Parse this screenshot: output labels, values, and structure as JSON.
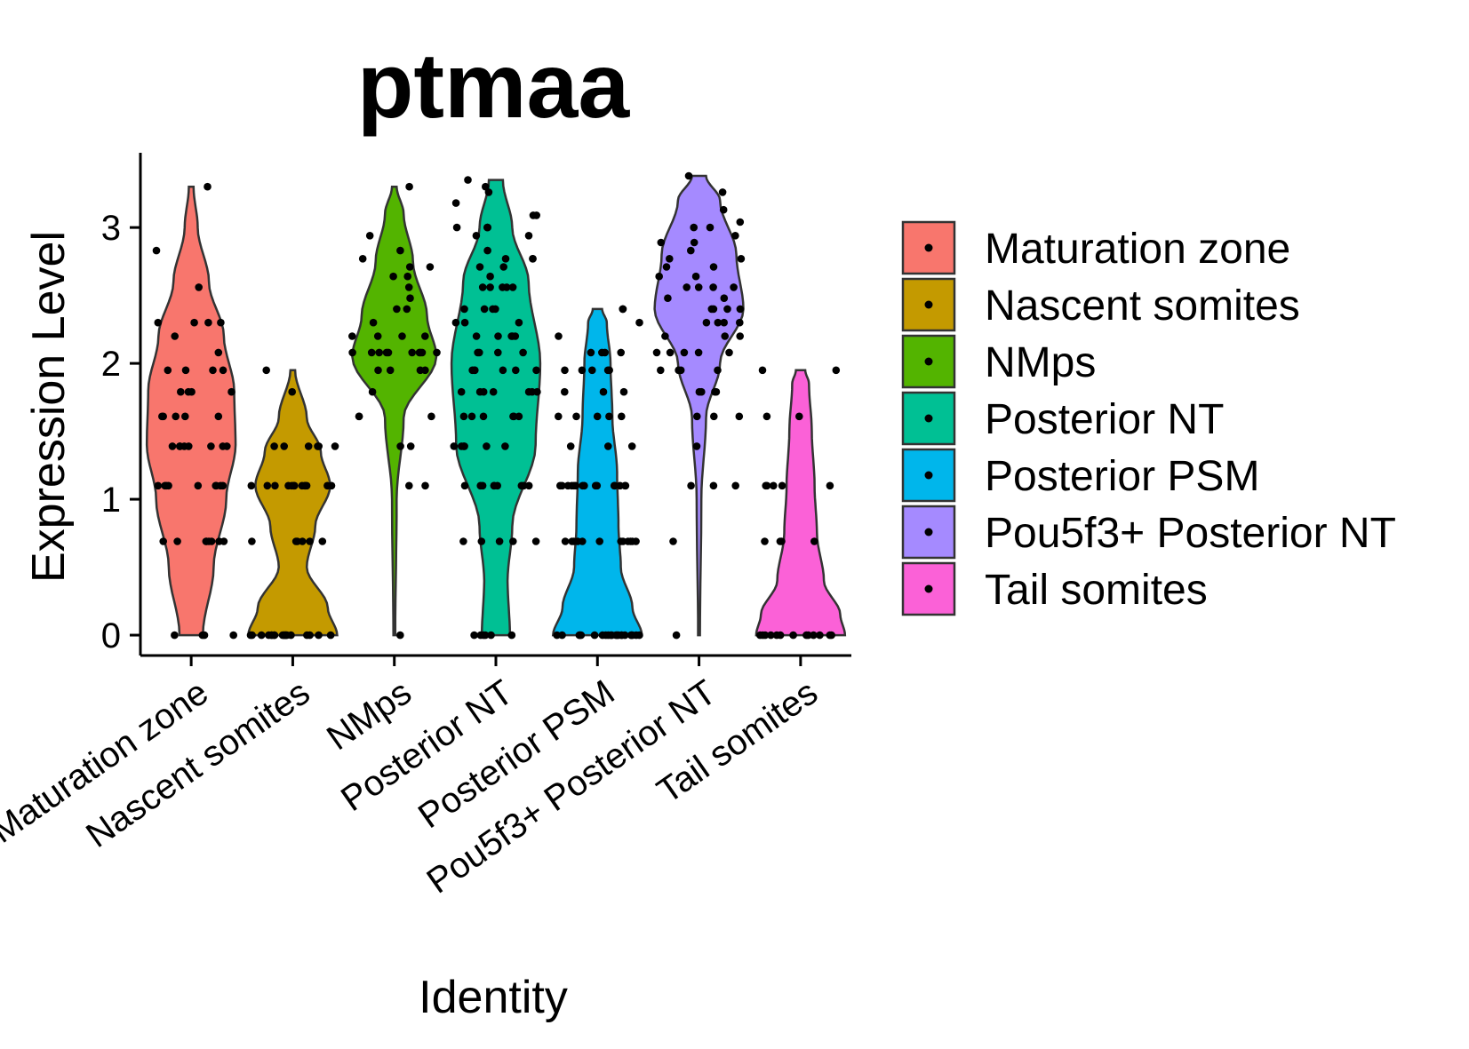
{
  "chart_data": {
    "type": "violin",
    "title": "ptmaa",
    "xlabel": "Identity",
    "ylabel": "Expression Level",
    "ylim": [
      -0.15,
      3.55
    ],
    "yticks": [
      0,
      1,
      2,
      3
    ],
    "legend_position": "right",
    "grid": false,
    "categories": [
      "Maturation zone",
      "Nascent somites",
      "NMps",
      "Posterior NT",
      "Posterior PSM",
      "Pou5f3+ Posterior NT",
      "Tail somites"
    ],
    "colors": [
      "#F8766D",
      "#C49A00",
      "#53B400",
      "#00C094",
      "#00B6EB",
      "#A58AFF",
      "#FB61D7"
    ],
    "series": [
      {
        "name": "Maturation zone",
        "violin": [
          [
            0,
            0.25
          ],
          [
            0.5,
            0.48
          ],
          [
            1,
            0.75
          ],
          [
            1.4,
            0.95
          ],
          [
            1.8,
            0.92
          ],
          [
            2.2,
            0.7
          ],
          [
            2.6,
            0.38
          ],
          [
            3.0,
            0.14
          ],
          [
            3.3,
            0.05
          ]
        ],
        "points": [
          0,
          0,
          0,
          0,
          0.69,
          0.69,
          0.69,
          0.69,
          0.69,
          0.69,
          0.69,
          0.69,
          1.1,
          1.1,
          1.1,
          1.1,
          1.1,
          1.1,
          1.1,
          1.1,
          1.1,
          1.39,
          1.39,
          1.39,
          1.39,
          1.39,
          1.39,
          1.39,
          1.39,
          1.61,
          1.61,
          1.61,
          1.61,
          1.61,
          1.79,
          1.79,
          1.79,
          1.79,
          1.95,
          1.95,
          1.95,
          1.95,
          2.08,
          2.2,
          2.3,
          2.3,
          2.3,
          2.3,
          2.56,
          2.83,
          3.3
        ]
      },
      {
        "name": "Nascent somites",
        "violin": [
          [
            0,
            0.95
          ],
          [
            0.2,
            0.75
          ],
          [
            0.5,
            0.3
          ],
          [
            0.8,
            0.48
          ],
          [
            1.1,
            0.8
          ],
          [
            1.35,
            0.6
          ],
          [
            1.6,
            0.3
          ],
          [
            1.95,
            0.05
          ]
        ],
        "points": [
          0,
          0,
          0,
          0,
          0,
          0,
          0,
          0,
          0,
          0,
          0,
          0,
          0,
          0,
          0,
          0,
          0,
          0,
          0,
          0.69,
          0.69,
          0.69,
          0.69,
          0.69,
          0.69,
          1.1,
          1.1,
          1.1,
          1.1,
          1.1,
          1.1,
          1.1,
          1.1,
          1.1,
          1.1,
          1.1,
          1.1,
          1.1,
          1.39,
          1.39,
          1.39,
          1.39,
          1.39,
          1.39,
          1.79,
          1.95
        ]
      },
      {
        "name": "NMps",
        "violin": [
          [
            0,
            0.02
          ],
          [
            1.0,
            0.05
          ],
          [
            1.6,
            0.2
          ],
          [
            2.05,
            0.9
          ],
          [
            2.35,
            0.7
          ],
          [
            2.75,
            0.4
          ],
          [
            3.1,
            0.2
          ],
          [
            3.3,
            0.05
          ]
        ],
        "points": [
          0,
          1.1,
          1.1,
          1.39,
          1.39,
          1.61,
          1.61,
          1.61,
          1.79,
          1.95,
          1.95,
          1.95,
          1.95,
          2.08,
          2.08,
          2.08,
          2.08,
          2.08,
          2.08,
          2.08,
          2.08,
          2.08,
          2.08,
          2.2,
          2.2,
          2.2,
          2.2,
          2.3,
          2.4,
          2.4,
          2.48,
          2.56,
          2.64,
          2.64,
          2.71,
          2.71,
          2.77,
          2.83,
          2.94,
          3.3
        ]
      },
      {
        "name": "Posterior NT",
        "violin": [
          [
            0,
            0.3
          ],
          [
            0.4,
            0.25
          ],
          [
            0.8,
            0.35
          ],
          [
            1.4,
            0.85
          ],
          [
            2.0,
            0.95
          ],
          [
            2.6,
            0.7
          ],
          [
            3.0,
            0.35
          ],
          [
            3.35,
            0.15
          ]
        ],
        "points": [
          0,
          0,
          0,
          0,
          0,
          0,
          0.69,
          0.69,
          0.69,
          0.69,
          0.69,
          1.1,
          1.1,
          1.1,
          1.1,
          1.1,
          1.1,
          1.1,
          1.1,
          1.1,
          1.39,
          1.39,
          1.39,
          1.39,
          1.39,
          1.39,
          1.61,
          1.61,
          1.61,
          1.61,
          1.61,
          1.61,
          1.79,
          1.79,
          1.79,
          1.79,
          1.79,
          1.79,
          1.79,
          1.95,
          1.95,
          1.95,
          1.95,
          1.95,
          1.95,
          2.08,
          2.08,
          2.08,
          2.08,
          2.2,
          2.2,
          2.2,
          2.2,
          2.2,
          2.3,
          2.3,
          2.3,
          2.4,
          2.4,
          2.4,
          2.4,
          2.56,
          2.56,
          2.56,
          2.56,
          2.56,
          2.64,
          2.71,
          2.71,
          2.77,
          2.77,
          2.77,
          2.83,
          2.94,
          2.94,
          3.0,
          3.0,
          3.0,
          3.09,
          3.09,
          3.18,
          3.26,
          3.3,
          3.35
        ]
      },
      {
        "name": "Posterior PSM",
        "violin": [
          [
            0,
            0.95
          ],
          [
            0.2,
            0.75
          ],
          [
            0.5,
            0.5
          ],
          [
            0.8,
            0.45
          ],
          [
            1.2,
            0.42
          ],
          [
            1.6,
            0.32
          ],
          [
            2.0,
            0.28
          ],
          [
            2.3,
            0.2
          ],
          [
            2.4,
            0.1
          ]
        ],
        "points": [
          0,
          0,
          0,
          0,
          0,
          0,
          0,
          0,
          0,
          0,
          0,
          0,
          0,
          0,
          0,
          0,
          0,
          0,
          0,
          0,
          0,
          0,
          0.69,
          0.69,
          0.69,
          0.69,
          0.69,
          0.69,
          0.69,
          0.69,
          0.69,
          0.69,
          0.69,
          0.69,
          1.1,
          1.1,
          1.1,
          1.1,
          1.1,
          1.1,
          1.1,
          1.1,
          1.1,
          1.1,
          1.1,
          1.1,
          1.1,
          1.1,
          1.1,
          1.39,
          1.39,
          1.39,
          1.61,
          1.61,
          1.61,
          1.61,
          1.61,
          1.79,
          1.79,
          1.79,
          1.95,
          1.95,
          1.95,
          1.95,
          1.95,
          2.08,
          2.08,
          2.08,
          2.08,
          2.2,
          2.3,
          2.4,
          2.4
        ]
      },
      {
        "name": "Pou5f3+ Posterior NT",
        "violin": [
          [
            0,
            0.02
          ],
          [
            1.0,
            0.05
          ],
          [
            1.6,
            0.15
          ],
          [
            2.0,
            0.45
          ],
          [
            2.4,
            0.95
          ],
          [
            2.8,
            0.8
          ],
          [
            3.2,
            0.45
          ],
          [
            3.38,
            0.15
          ]
        ],
        "points": [
          0,
          0.69,
          1.1,
          1.1,
          1.1,
          1.39,
          1.61,
          1.61,
          1.61,
          1.79,
          1.79,
          1.79,
          1.79,
          1.95,
          1.95,
          1.95,
          1.95,
          2.08,
          2.08,
          2.08,
          2.08,
          2.08,
          2.2,
          2.2,
          2.2,
          2.3,
          2.3,
          2.3,
          2.3,
          2.4,
          2.4,
          2.4,
          2.4,
          2.48,
          2.48,
          2.56,
          2.56,
          2.56,
          2.56,
          2.64,
          2.64,
          2.71,
          2.71,
          2.77,
          2.77,
          2.83,
          2.89,
          2.89,
          2.94,
          3.0,
          3.0,
          3.04,
          3.13,
          3.26,
          3.38
        ]
      },
      {
        "name": "Tail somites",
        "violin": [
          [
            0,
            0.95
          ],
          [
            0.15,
            0.85
          ],
          [
            0.4,
            0.5
          ],
          [
            0.75,
            0.35
          ],
          [
            1.1,
            0.3
          ],
          [
            1.5,
            0.24
          ],
          [
            1.85,
            0.18
          ],
          [
            1.95,
            0.1
          ]
        ],
        "points": [
          0,
          0,
          0,
          0,
          0,
          0,
          0,
          0,
          0,
          0,
          0,
          0,
          0,
          0.69,
          0.69,
          0.69,
          0.69,
          1.1,
          1.1,
          1.1,
          1.1,
          1.1,
          1.61,
          1.61,
          1.95,
          1.95
        ]
      }
    ]
  }
}
